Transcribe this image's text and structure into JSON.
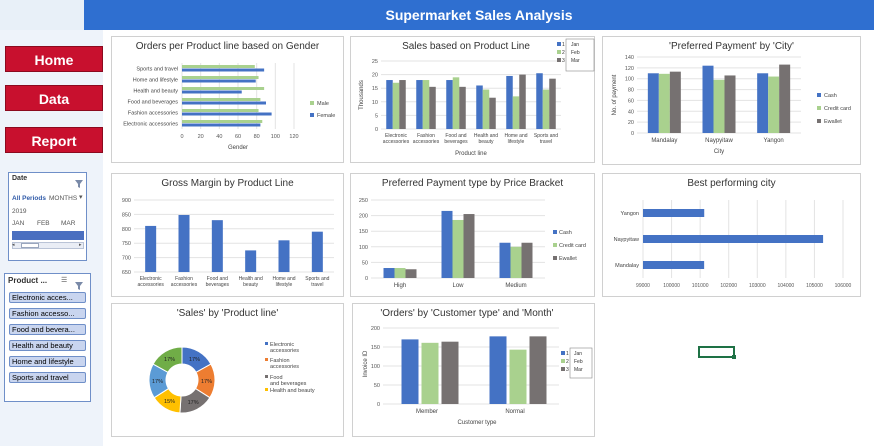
{
  "title": "Supermarket Sales Analysis",
  "nav": {
    "home": "Home",
    "data": "Data",
    "report": "Report"
  },
  "date_slicer": {
    "label": "Date",
    "period_label": "All Periods",
    "unit_label": "MONTHS",
    "year": "2019",
    "months": [
      "JAN",
      "FEB",
      "MAR"
    ]
  },
  "product_slicer": {
    "label": "Product ...",
    "items": [
      "Electronic acces...",
      "Fashion accesso...",
      "Food and bevera...",
      "Health and beauty",
      "Home and lifestyle",
      "Sports and travel"
    ]
  },
  "colors": {
    "blue": "#4472c4",
    "green": "#a9d18e",
    "gray": "#767171",
    "orange": "#ed7d31",
    "gold": "#ffc000",
    "lightblue": "#5b9bd5",
    "darkgreen": "#70ad47",
    "header": "#2f6fd0",
    "nav": "#c8102e"
  },
  "chart_data": [
    {
      "id": "orders_gender",
      "type": "bar",
      "title": "Orders per Product line based on Gender",
      "orientation": "horizontal",
      "categories": [
        "Electronic accessories",
        "Fashion accessories",
        "Food and beverages",
        "Health and beauty",
        "Home and lifestyle",
        "Sports and travel"
      ],
      "series": [
        {
          "name": "Male",
          "values": [
            86,
            82,
            84,
            88,
            82,
            78
          ]
        },
        {
          "name": "Female",
          "values": [
            84,
            96,
            90,
            64,
            79,
            88
          ]
        }
      ],
      "xlabel": "Gender",
      "xticks": [
        "0",
        "20",
        "40",
        "60",
        "80",
        "100",
        "120"
      ],
      "xlim": [
        0,
        120
      ]
    },
    {
      "id": "sales_product",
      "type": "bar",
      "title": "Sales based on Product Line",
      "categories": [
        "Electronic accessories",
        "Fashion accessories",
        "Food and beverages",
        "Health and beauty",
        "Home and lifestyle",
        "Sports and travel"
      ],
      "series": [
        {
          "name": "Jan",
          "values": [
            18,
            18,
            18,
            16,
            19.5,
            20.5
          ]
        },
        {
          "name": "Feb",
          "values": [
            17,
            18,
            19,
            14.5,
            12,
            14.5
          ]
        },
        {
          "name": "Mar",
          "values": [
            18,
            15.5,
            15.5,
            11.5,
            20,
            18.5
          ]
        }
      ],
      "legend_prefix": [
        "1",
        "2",
        "3"
      ],
      "xlabel": "Product line",
      "ylabel": "Thousands",
      "yticks": [
        "0",
        "5",
        "10",
        "15",
        "20",
        "25"
      ],
      "ylim": [
        0,
        25
      ]
    },
    {
      "id": "payment_city",
      "type": "bar",
      "title": "'Preferred Payment' by 'City'",
      "categories": [
        "Mandalay",
        "Naypyitaw",
        "Yangon"
      ],
      "series": [
        {
          "name": "Cash",
          "values": [
            110,
            124,
            110
          ]
        },
        {
          "name": "Credit card",
          "values": [
            109,
            98,
            104
          ]
        },
        {
          "name": "Ewallet",
          "values": [
            113,
            106,
            126
          ]
        }
      ],
      "xlabel": "City",
      "ylabel": "No. of payment",
      "yticks": [
        "0",
        "20",
        "40",
        "60",
        "80",
        "100",
        "120",
        "140"
      ],
      "ylim": [
        0,
        140
      ]
    },
    {
      "id": "gross_margin",
      "type": "bar",
      "title": "Gross Margin by Product Line",
      "categories": [
        "Electronic accessories",
        "Fashion accessories",
        "Food and beverages",
        "Health and beauty",
        "Home and lifestyle",
        "Sports and travel"
      ],
      "series": [
        {
          "name": "Gross Margin",
          "values": [
            810,
            848,
            830,
            725,
            760,
            790
          ]
        }
      ],
      "yticks": [
        "650",
        "700",
        "750",
        "800",
        "850",
        "900"
      ],
      "ylim": [
        650,
        900
      ]
    },
    {
      "id": "payment_bracket",
      "type": "bar",
      "title": "Preferred Payment type by Price Bracket",
      "categories": [
        "High",
        "Low",
        "Medium"
      ],
      "series": [
        {
          "name": "Cash",
          "values": [
            32,
            215,
            113
          ]
        },
        {
          "name": "Credit card",
          "values": [
            32,
            186,
            100
          ]
        },
        {
          "name": "Ewallet",
          "values": [
            28,
            205,
            113
          ]
        }
      ],
      "yticks": [
        "0",
        "50",
        "100",
        "150",
        "200",
        "250"
      ],
      "ylim": [
        0,
        250
      ]
    },
    {
      "id": "best_city",
      "type": "bar",
      "title": "Best performing city",
      "orientation": "horizontal",
      "categories": [
        "Mandalay",
        "Naypyitaw",
        "Yangon"
      ],
      "values": [
        101140,
        105303,
        101143
      ],
      "xticks": [
        "99000",
        "100000",
        "101000",
        "102000",
        "103000",
        "104000",
        "105000",
        "106000"
      ],
      "xlim": [
        99000,
        106000
      ]
    },
    {
      "id": "sales_pie",
      "type": "pie",
      "title": "'Sales' by 'Product line'",
      "donut": true,
      "labels": [
        "Electronic accessories",
        "Fashion accessories",
        "Food and beverages",
        "Health and beauty",
        "Home and lifestyle",
        "Sports and travel"
      ],
      "values": [
        17,
        17,
        17,
        15,
        17,
        17
      ],
      "data_labels": [
        "17%",
        "17%",
        "17%",
        "15%",
        "17%",
        "17%"
      ],
      "legend": [
        "Electronic accessories",
        "Fashion accessories",
        "Food and beverages",
        "Health and beauty"
      ]
    },
    {
      "id": "orders_customer",
      "type": "bar",
      "title": "'Orders' by 'Customer type' and 'Month'",
      "categories": [
        "Member",
        "Normal"
      ],
      "series": [
        {
          "name": "Jan",
          "values": [
            170,
            178
          ]
        },
        {
          "name": "Feb",
          "values": [
            161,
            143
          ]
        },
        {
          "name": "Mar",
          "values": [
            164,
            178
          ]
        }
      ],
      "legend_prefix": [
        "1",
        "2",
        "3"
      ],
      "xlabel": "Customer type",
      "ylabel": "Invoice ID",
      "yticks": [
        "0",
        "50",
        "100",
        "150",
        "200"
      ],
      "ylim": [
        0,
        200
      ]
    }
  ]
}
